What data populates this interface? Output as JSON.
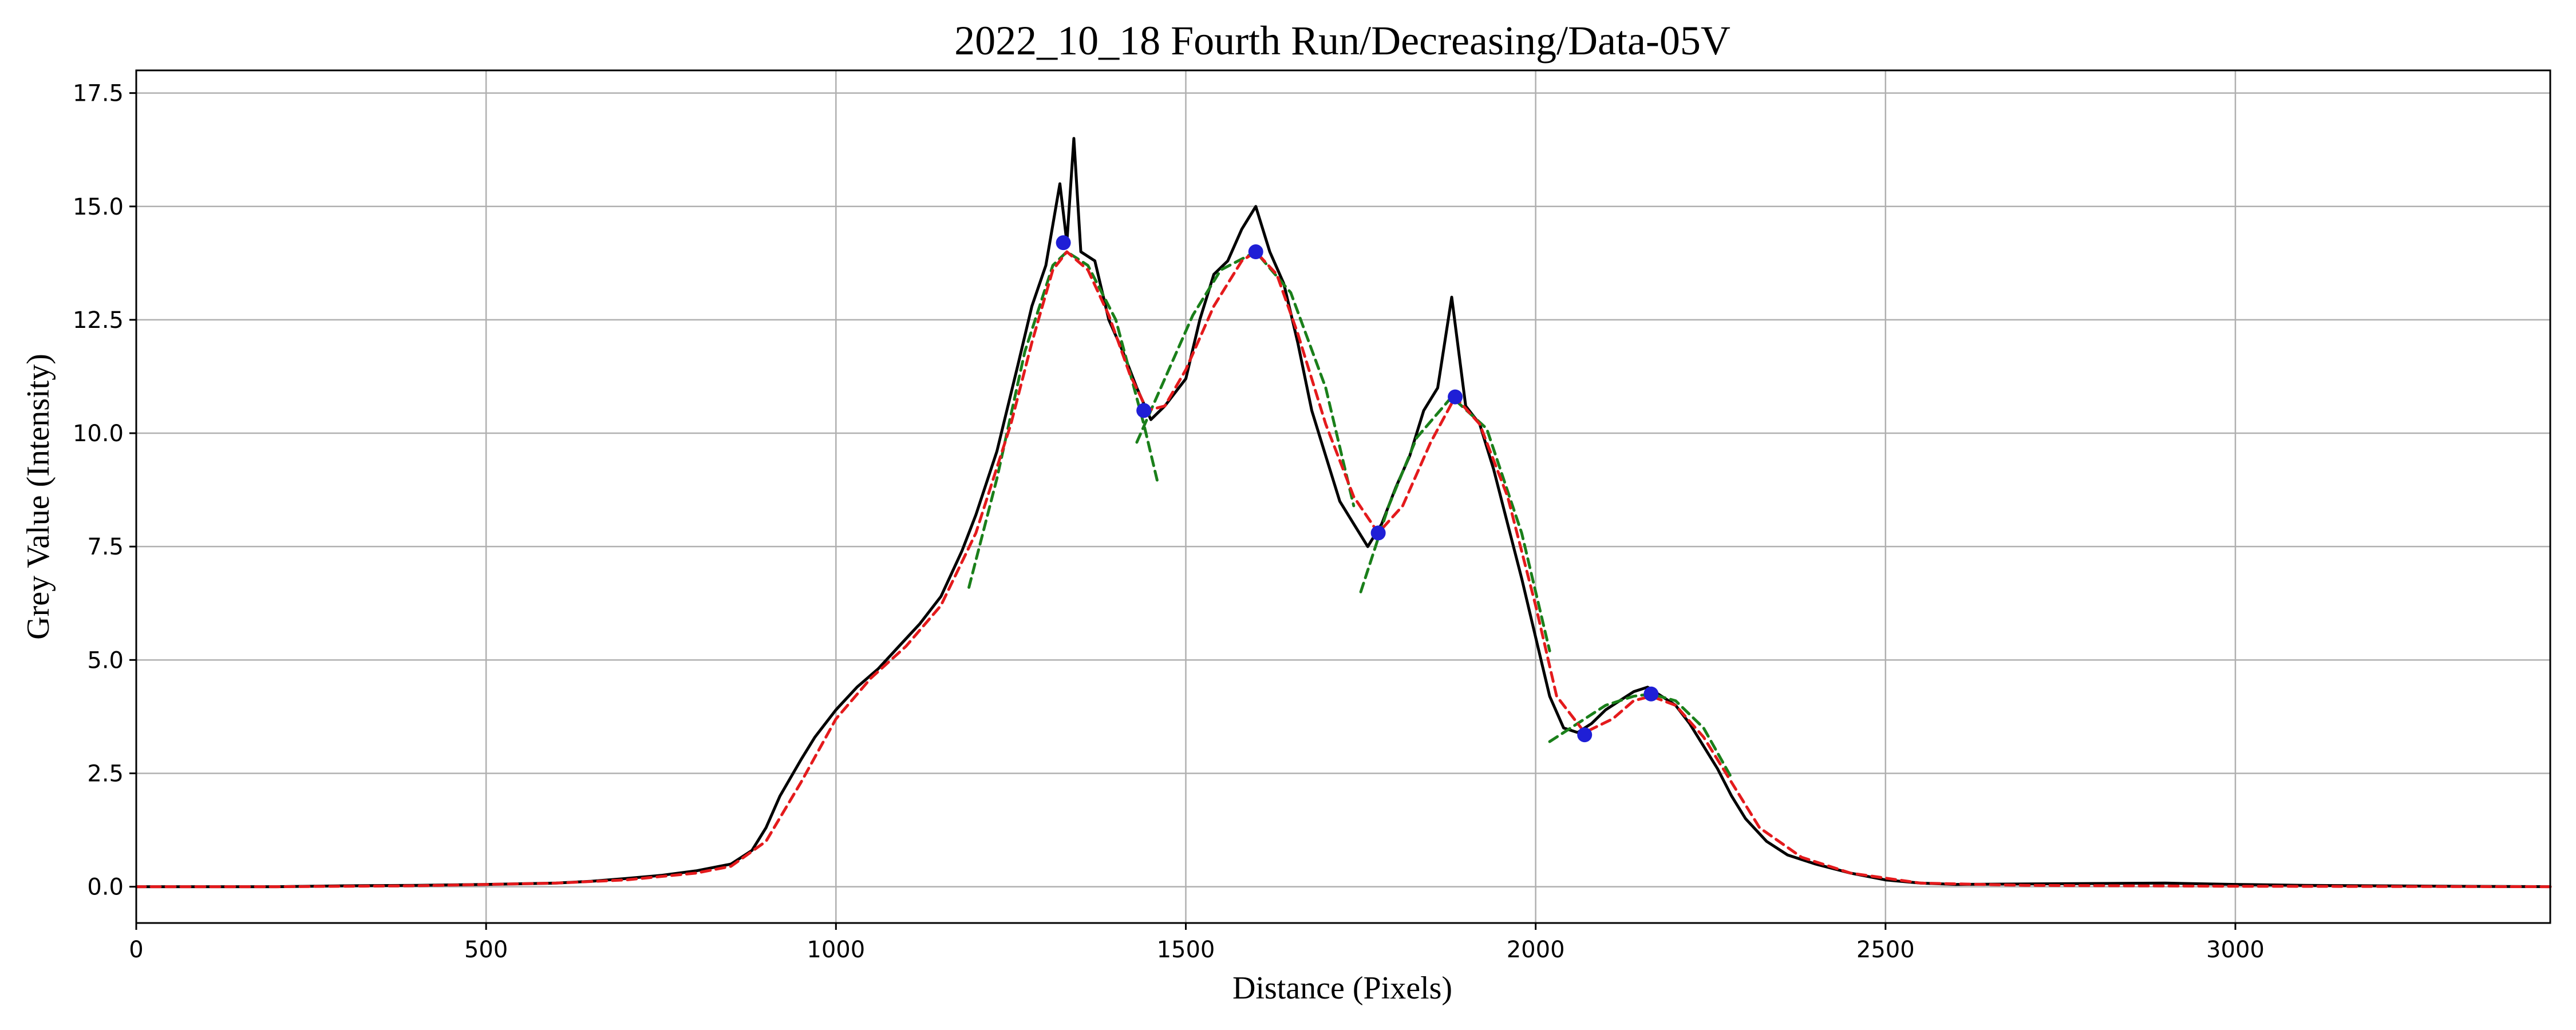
{
  "chart_data": {
    "type": "line",
    "title": "2022_10_18 Fourth Run/Decreasing/Data-05V",
    "xlabel": "Distance (Pixels)",
    "ylabel": "Grey Value (Intensity)",
    "xlim": [
      0,
      3450
    ],
    "ylim": [
      -0.8,
      18.0
    ],
    "xticks": [
      0,
      500,
      1000,
      1500,
      2000,
      2500,
      3000
    ],
    "yticks": [
      0.0,
      2.5,
      5.0,
      7.5,
      10.0,
      12.5,
      15.0,
      17.5
    ],
    "xtick_labels": [
      "0",
      "500",
      "1000",
      "1500",
      "2000",
      "2500",
      "3000"
    ],
    "ytick_labels": [
      "0.0",
      "2.5",
      "5.0",
      "7.5",
      "10.0",
      "12.5",
      "15.0",
      "17.5"
    ],
    "grid": true,
    "colors": {
      "raw": "#000000",
      "smoothed": "#e41a1c",
      "fit": "#1a7f1a",
      "peaks": "#1f1fd6"
    },
    "series": [
      {
        "style": "raw",
        "x": [
          0,
          100,
          200,
          300,
          400,
          500,
          600,
          650,
          700,
          750,
          800,
          850,
          880,
          900,
          920,
          950,
          970,
          1000,
          1030,
          1060,
          1090,
          1120,
          1150,
          1180,
          1200,
          1230,
          1260,
          1280,
          1300,
          1320,
          1330,
          1340,
          1350,
          1370,
          1390,
          1410,
          1430,
          1450,
          1470,
          1500,
          1520,
          1540,
          1560,
          1580,
          1600,
          1620,
          1640,
          1660,
          1680,
          1700,
          1720,
          1740,
          1760,
          1780,
          1800,
          1820,
          1840,
          1860,
          1880,
          1900,
          1920,
          1940,
          1960,
          1980,
          2000,
          2020,
          2040,
          2060,
          2080,
          2100,
          2120,
          2140,
          2160,
          2180,
          2200,
          2220,
          2240,
          2260,
          2280,
          2300,
          2330,
          2360,
          2400,
          2450,
          2500,
          2550,
          2600,
          2700,
          2800,
          2900,
          3000,
          3100,
          3200,
          3300,
          3450
        ],
        "y": [
          0.0,
          0.0,
          0.0,
          0.02,
          0.03,
          0.05,
          0.08,
          0.12,
          0.18,
          0.25,
          0.35,
          0.5,
          0.8,
          1.3,
          2.0,
          2.8,
          3.3,
          3.9,
          4.4,
          4.8,
          5.3,
          5.8,
          6.4,
          7.4,
          8.2,
          9.6,
          11.5,
          12.8,
          13.7,
          15.5,
          14.2,
          16.5,
          14.0,
          13.8,
          12.5,
          11.8,
          11.0,
          10.3,
          10.6,
          11.2,
          12.5,
          13.5,
          13.8,
          14.5,
          15.0,
          14.0,
          13.3,
          12.0,
          10.5,
          9.5,
          8.5,
          8.0,
          7.5,
          8.0,
          8.8,
          9.5,
          10.5,
          11.0,
          13.0,
          10.6,
          10.2,
          9.2,
          8.0,
          6.8,
          5.5,
          4.2,
          3.5,
          3.4,
          3.6,
          3.9,
          4.1,
          4.3,
          4.4,
          4.2,
          4.0,
          3.6,
          3.1,
          2.6,
          2.0,
          1.5,
          1.0,
          0.7,
          0.5,
          0.3,
          0.15,
          0.08,
          0.05,
          0.06,
          0.07,
          0.08,
          0.05,
          0.03,
          0.02,
          0.01,
          0.0
        ]
      },
      {
        "style": "smoothed",
        "x": [
          0,
          200,
          400,
          600,
          700,
          800,
          850,
          900,
          950,
          1000,
          1050,
          1100,
          1150,
          1200,
          1250,
          1280,
          1310,
          1330,
          1360,
          1390,
          1420,
          1445,
          1470,
          1500,
          1540,
          1580,
          1600,
          1630,
          1660,
          1700,
          1740,
          1775,
          1810,
          1850,
          1885,
          1920,
          1960,
          2000,
          2030,
          2070,
          2110,
          2140,
          2165,
          2200,
          2240,
          2280,
          2320,
          2380,
          2450,
          2550,
          2700,
          3000,
          3450
        ],
        "y": [
          0.0,
          0.0,
          0.02,
          0.08,
          0.15,
          0.3,
          0.45,
          1.0,
          2.3,
          3.7,
          4.6,
          5.3,
          6.2,
          7.8,
          10.2,
          12.0,
          13.6,
          14.0,
          13.6,
          12.6,
          11.3,
          10.5,
          10.6,
          11.4,
          12.8,
          13.8,
          14.0,
          13.5,
          12.2,
          10.2,
          8.6,
          7.8,
          8.4,
          9.8,
          10.8,
          10.2,
          8.6,
          6.2,
          4.2,
          3.4,
          3.7,
          4.1,
          4.2,
          4.0,
          3.3,
          2.3,
          1.3,
          0.65,
          0.3,
          0.08,
          0.03,
          0.01,
          0.0
        ]
      },
      {
        "style": "fit",
        "x": [
          1190,
          1230,
          1270,
          1310,
          1330,
          1360,
          1400,
          1440,
          1460
        ],
        "y": [
          6.6,
          9.0,
          11.8,
          13.7,
          14.0,
          13.7,
          12.5,
          10.2,
          8.9
        ]
      },
      {
        "style": "fit",
        "x": [
          1430,
          1470,
          1510,
          1550,
          1600,
          1650,
          1700,
          1740
        ],
        "y": [
          9.8,
          11.2,
          12.6,
          13.6,
          14.0,
          13.1,
          11.0,
          8.4
        ]
      },
      {
        "style": "fit",
        "x": [
          1750,
          1790,
          1830,
          1880,
          1930,
          1980,
          2020
        ],
        "y": [
          6.5,
          8.4,
          9.9,
          10.8,
          10.1,
          7.8,
          5.2
        ]
      },
      {
        "style": "fit",
        "x": [
          2020,
          2060,
          2100,
          2140,
          2165,
          2200,
          2240,
          2280
        ],
        "y": [
          3.2,
          3.6,
          4.0,
          4.2,
          4.25,
          4.1,
          3.5,
          2.4
        ]
      }
    ],
    "peaks": {
      "x": [
        1325,
        1440,
        1600,
        1775,
        1885,
        2070,
        2165
      ],
      "y": [
        14.2,
        10.5,
        14.0,
        7.8,
        10.8,
        3.35,
        4.25
      ]
    }
  }
}
